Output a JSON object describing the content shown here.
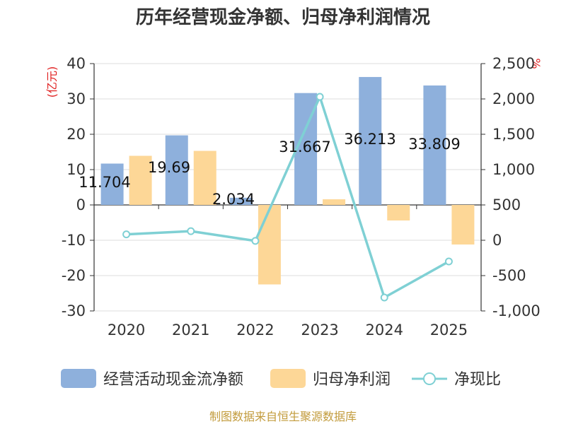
{
  "chart_data": {
    "type": "bar",
    "title": "历年经营现金净额、归母净利润情况",
    "categories": [
      "2020",
      "2021",
      "2022",
      "2023",
      "2024",
      "2025"
    ],
    "y_left_unit": "(亿元)",
    "y_right_unit": "%",
    "y_left_range": [
      -30,
      40
    ],
    "y_left_ticks": [
      "40",
      "30",
      "20",
      "10",
      "0",
      "-10",
      "-20",
      "-30"
    ],
    "y_right_range": [
      -1000,
      2500
    ],
    "y_right_ticks": [
      "2,500",
      "2,000",
      "1,500",
      "1,000",
      "500",
      "0",
      "-500",
      "-1,000"
    ],
    "series": [
      {
        "name": "经营活动现金流净额",
        "kind": "bar",
        "axis": "left",
        "color": "#8eb0dc",
        "values": [
          11.704,
          19.69,
          2.034,
          31.667,
          36.213,
          33.809
        ],
        "labels": [
          "11.704",
          "19.69",
          "2.034",
          "31.667",
          "36.213",
          "33.809"
        ]
      },
      {
        "name": "归母净利润",
        "kind": "bar",
        "axis": "left",
        "color": "#fdd797",
        "values": [
          13.9,
          15.3,
          -22.5,
          1.6,
          -4.4,
          -11.2
        ]
      },
      {
        "name": "净现比",
        "kind": "line",
        "axis": "right",
        "color": "#7fd0d4",
        "values": [
          84,
          129,
          -9,
          2030,
          -810,
          -300
        ]
      }
    ],
    "legend_position": "bottom",
    "source": "制图数据来自恒生聚源数据库"
  }
}
